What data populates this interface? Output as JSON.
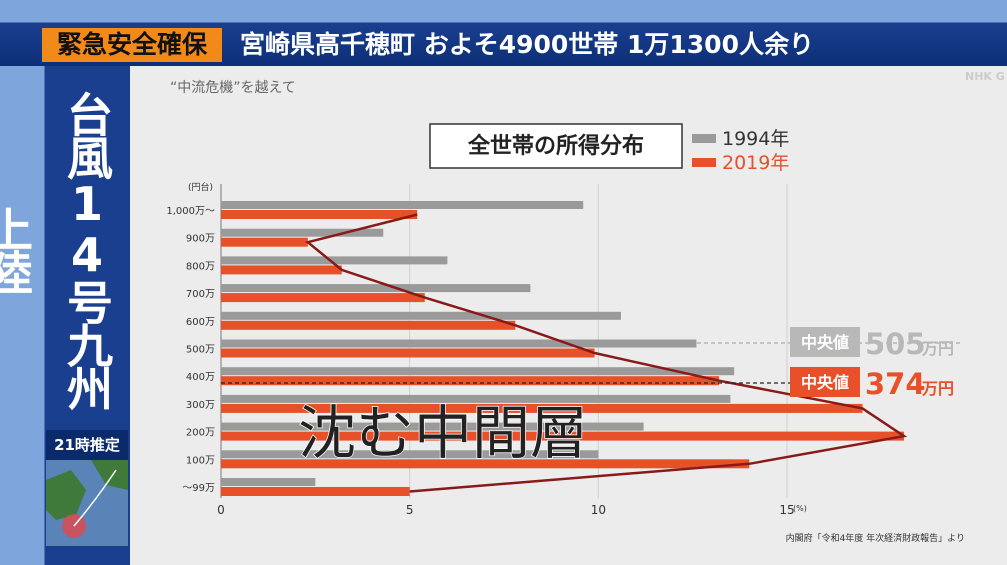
{
  "banner": {
    "alert": "緊急安全確保",
    "headline": "宮崎県高千穂町 およそ4900世帯 1万1300人余り"
  },
  "side": {
    "title": "台風14号九州上陸",
    "estimate": "21時推定"
  },
  "program": {
    "logo": "NHK G",
    "series_title": "“中流危機”を越えて"
  },
  "chart_data": {
    "type": "hbar",
    "title": "全世帯の所得分布",
    "y_unit": "(円台)",
    "x_unit": "(%)",
    "categories": [
      "1,000万〜",
      "900万",
      "800万",
      "700万",
      "600万",
      "500万",
      "400万",
      "300万",
      "200万",
      "100万",
      "〜99万"
    ],
    "series": [
      {
        "name": "1994年",
        "color": "#9a9a9a",
        "values": [
          9.6,
          4.3,
          6.0,
          8.2,
          10.6,
          12.6,
          13.6,
          13.5,
          11.2,
          10.0,
          2.5
        ]
      },
      {
        "name": "2019年",
        "color": "#e8502a",
        "values": [
          5.2,
          2.3,
          3.2,
          5.4,
          7.8,
          9.9,
          13.2,
          17.0,
          18.1,
          14.0,
          5.0
        ]
      }
    ],
    "xlim": [
      0,
      20
    ],
    "xticks": [
      0,
      5,
      10,
      15
    ],
    "grid": true,
    "medians": [
      {
        "label": "中央値",
        "value": "505",
        "unit": "万円",
        "color": "#b8b8b8"
      },
      {
        "label": "中央値",
        "value": "374",
        "unit": "万円",
        "color": "#e8502a"
      }
    ],
    "overlay": "沈む中間層",
    "source": "内閣府「令和4年度 年次経済財政報告」より"
  }
}
